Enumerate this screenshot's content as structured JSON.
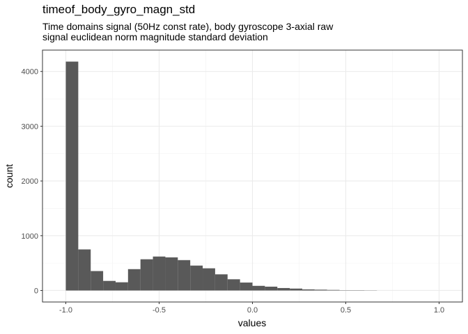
{
  "chart_data": {
    "type": "bar",
    "title": "timeof_body_gyro_magn_std",
    "subtitle_lines": [
      "Time domains signal (50Hz const rate), body gyroscope 3-axial raw",
      "signal euclidean norm magnitude standard deviation"
    ],
    "xlabel": "values",
    "ylabel": "count",
    "xlim": [
      -1.125,
      1.125
    ],
    "ylim": [
      -210,
      4390
    ],
    "x_ticks": [
      -1.0,
      -0.5,
      0.0,
      0.5,
      1.0
    ],
    "x_tick_labels": [
      "-1.0",
      "-0.5",
      "0.0",
      "0.5",
      "1.0"
    ],
    "y_ticks": [
      0,
      1000,
      2000,
      3000,
      4000
    ],
    "y_tick_labels": [
      "0",
      "1000",
      "2000",
      "3000",
      "4000"
    ],
    "grid": true,
    "bin_width": 0.0667,
    "bins_start": [
      -1.0,
      -0.9333,
      -0.8667,
      -0.8,
      -0.7333,
      -0.6667,
      -0.6,
      -0.5333,
      -0.4667,
      -0.4,
      -0.3333,
      -0.2667,
      -0.2,
      -0.1333,
      -0.0667,
      0.0,
      0.0667,
      0.1333,
      0.2,
      0.2667,
      0.3333,
      0.4,
      0.4667,
      0.5333,
      0.6
    ],
    "values": [
      4180,
      750,
      355,
      175,
      150,
      390,
      570,
      620,
      605,
      555,
      455,
      405,
      295,
      205,
      145,
      85,
      70,
      45,
      35,
      20,
      15,
      10,
      5,
      5,
      3
    ],
    "bar_color": "#595959"
  }
}
